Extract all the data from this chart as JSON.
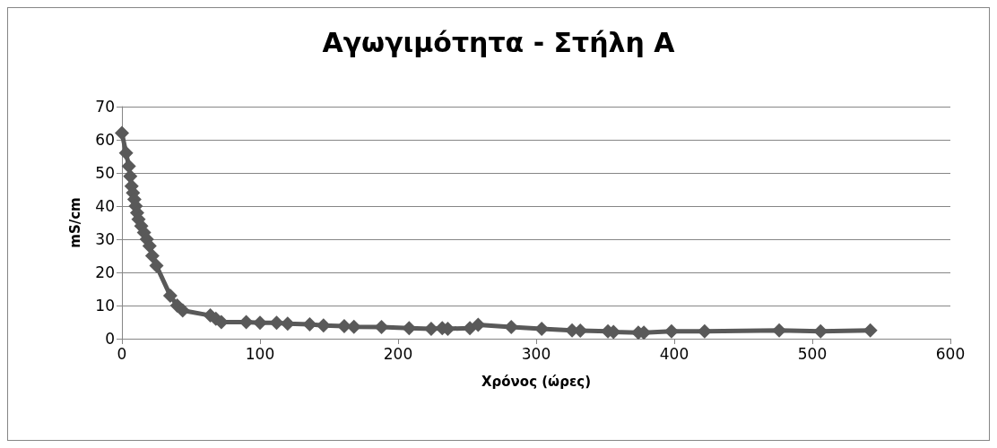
{
  "chart_data": {
    "type": "line",
    "title": "Αγωγιμότητα - Στήλη Α",
    "xlabel": "Χρόνος (ώρες)",
    "ylabel": "mS/cm",
    "x": [
      0,
      3,
      5,
      6,
      7,
      8,
      9,
      10,
      11,
      12,
      14,
      16,
      18,
      20,
      22,
      25,
      35,
      40,
      44,
      64,
      68,
      72,
      90,
      100,
      112,
      120,
      136,
      146,
      161,
      168,
      188,
      208,
      224,
      232,
      236,
      252,
      258,
      282,
      304,
      326,
      332,
      352,
      356,
      374,
      378,
      398,
      422,
      476,
      506,
      542
    ],
    "series": [
      {
        "color": "#595959",
        "values": [
          62,
          56,
          52,
          49,
          46,
          44,
          42,
          40,
          38,
          36,
          34,
          32,
          30,
          28,
          25,
          22,
          13,
          10,
          8.5,
          7,
          6,
          5,
          5,
          4.8,
          4.8,
          4.5,
          4.3,
          4,
          3.8,
          3.6,
          3.5,
          3.2,
          3,
          3.2,
          3,
          3.2,
          4.2,
          3.5,
          3,
          2.5,
          2.4,
          2.2,
          2,
          1.8,
          1.8,
          2.2,
          2.2,
          2.5,
          2.2,
          2.5
        ]
      }
    ],
    "xlim": [
      0,
      600
    ],
    "xticks": [
      0,
      100,
      200,
      300,
      400,
      500,
      600
    ],
    "ylim": [
      0,
      70
    ],
    "yticks": [
      0,
      10,
      20,
      30,
      40,
      50,
      60,
      70
    ],
    "grid": "y",
    "marker": "diamond",
    "line_style": "solid"
  }
}
